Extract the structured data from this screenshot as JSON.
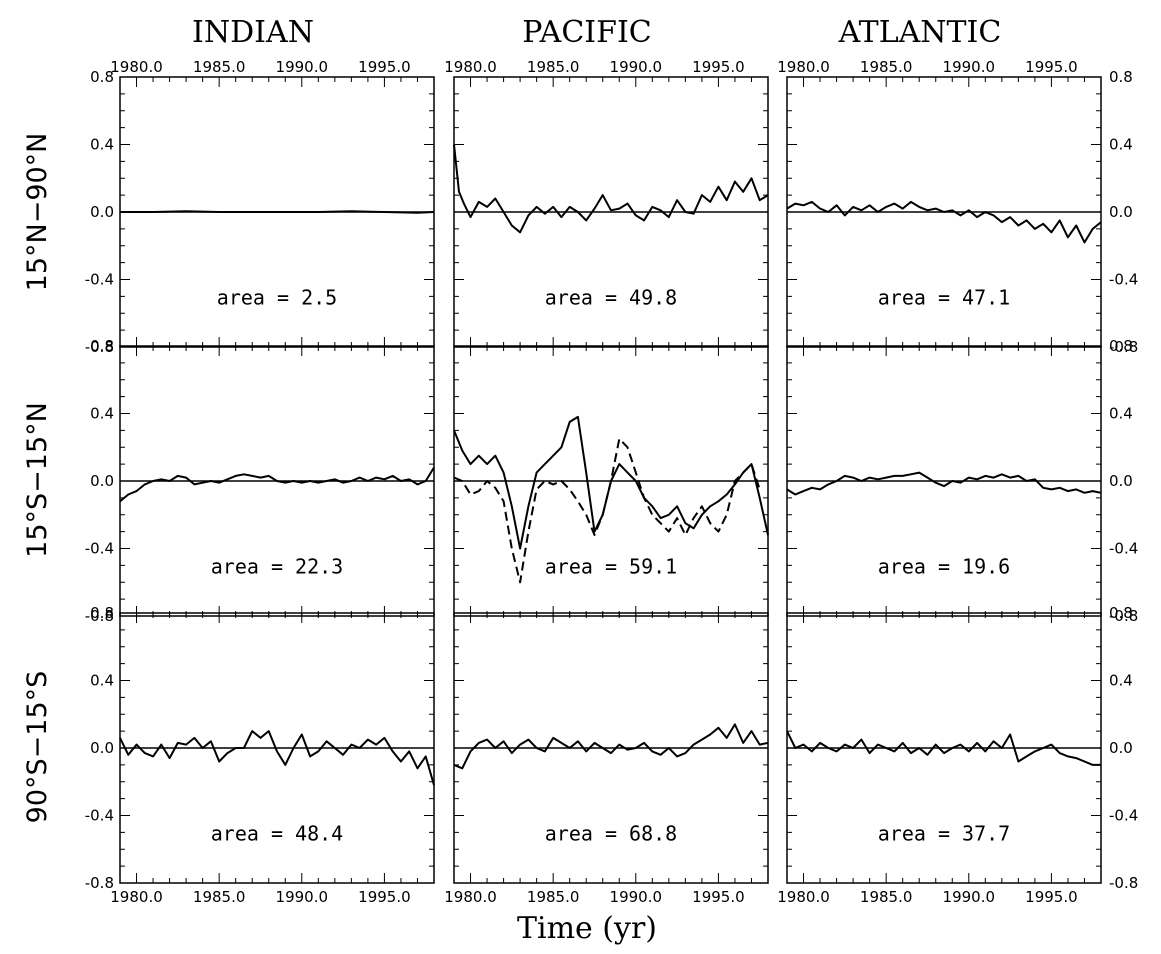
{
  "chart_data": {
    "type": "line",
    "columns": [
      "INDIAN",
      "PACIFIC",
      "ATLANTIC"
    ],
    "rows": [
      "15°N−90°N",
      "15°S−15°N",
      "90°S−15°S"
    ],
    "xlabel": "Time (yr)",
    "xlim": [
      1979.0,
      1998.0
    ],
    "ylim": [
      -0.8,
      0.8
    ],
    "x_ticks": [
      1980.0,
      1985.0,
      1990.0,
      1995.0
    ],
    "x_tick_labels": [
      "1980.0",
      "1985.0",
      "1990.0",
      "1995.0"
    ],
    "y_ticks": [
      -0.8,
      -0.4,
      0.0,
      0.4,
      0.8
    ],
    "y_tick_labels": [
      "-0.8",
      "-0.4",
      "0.0",
      "0.4",
      "0.8"
    ],
    "reference_line": 0.0,
    "panels": [
      {
        "basin": "INDIAN",
        "region": "15°N−90°N",
        "area_label": "area = 2.5",
        "series": [
          {
            "style": "solid",
            "x": [
              1979.0,
              1981.0,
              1983.0,
              1985.0,
              1987.0,
              1989.0,
              1991.0,
              1993.0,
              1995.0,
              1997.0,
              1998.0
            ],
            "values": [
              0.0,
              0.0,
              0.005,
              0.0,
              0.0,
              0.0,
              0.0,
              0.005,
              0.0,
              -0.005,
              0.0
            ]
          }
        ]
      },
      {
        "basin": "PACIFIC",
        "region": "15°N−90°N",
        "area_label": "area = 49.8",
        "series": [
          {
            "style": "solid",
            "x": [
              1979.0,
              1979.3,
              1979.6,
              1980.0,
              1980.5,
              1981.0,
              1981.5,
              1982.0,
              1982.5,
              1983.0,
              1983.5,
              1984.0,
              1984.5,
              1985.0,
              1985.5,
              1986.0,
              1986.5,
              1987.0,
              1987.5,
              1988.0,
              1988.5,
              1989.0,
              1989.5,
              1990.0,
              1990.5,
              1991.0,
              1991.5,
              1992.0,
              1992.5,
              1993.0,
              1993.5,
              1994.0,
              1994.5,
              1995.0,
              1995.5,
              1996.0,
              1996.5,
              1997.0,
              1997.5,
              1998.0
            ],
            "values": [
              0.4,
              0.12,
              0.05,
              -0.03,
              0.06,
              0.03,
              0.08,
              0.0,
              -0.08,
              -0.12,
              -0.02,
              0.03,
              -0.01,
              0.03,
              -0.03,
              0.03,
              0.0,
              -0.05,
              0.02,
              0.1,
              0.01,
              0.02,
              0.05,
              -0.02,
              -0.05,
              0.03,
              0.01,
              -0.03,
              0.07,
              0.0,
              -0.01,
              0.1,
              0.06,
              0.15,
              0.07,
              0.18,
              0.12,
              0.2,
              0.07,
              0.1
            ]
          }
        ]
      },
      {
        "basin": "ATLANTIC",
        "region": "15°N−90°N",
        "area_label": "area = 47.1",
        "series": [
          {
            "style": "solid",
            "x": [
              1979.0,
              1979.5,
              1980.0,
              1980.5,
              1981.0,
              1981.5,
              1982.0,
              1982.5,
              1983.0,
              1983.5,
              1984.0,
              1984.5,
              1985.0,
              1985.5,
              1986.0,
              1986.5,
              1987.0,
              1987.5,
              1988.0,
              1988.5,
              1989.0,
              1989.5,
              1990.0,
              1990.5,
              1991.0,
              1991.5,
              1992.0,
              1992.5,
              1993.0,
              1993.5,
              1994.0,
              1994.5,
              1995.0,
              1995.5,
              1996.0,
              1996.5,
              1997.0,
              1997.5,
              1998.0
            ],
            "values": [
              0.02,
              0.05,
              0.04,
              0.06,
              0.02,
              0.0,
              0.04,
              -0.02,
              0.03,
              0.01,
              0.04,
              0.0,
              0.03,
              0.05,
              0.02,
              0.06,
              0.03,
              0.01,
              0.02,
              0.0,
              0.01,
              -0.02,
              0.01,
              -0.03,
              0.0,
              -0.02,
              -0.06,
              -0.03,
              -0.08,
              -0.05,
              -0.1,
              -0.07,
              -0.12,
              -0.05,
              -0.15,
              -0.08,
              -0.18,
              -0.1,
              -0.06
            ]
          }
        ]
      },
      {
        "basin": "INDIAN",
        "region": "15°S−15°N",
        "area_label": "area = 22.3",
        "series": [
          {
            "style": "solid",
            "x": [
              1979.0,
              1979.5,
              1980.0,
              1980.5,
              1981.0,
              1981.5,
              1982.0,
              1982.5,
              1983.0,
              1983.5,
              1984.0,
              1984.5,
              1985.0,
              1985.5,
              1986.0,
              1986.5,
              1987.0,
              1987.5,
              1988.0,
              1988.5,
              1989.0,
              1989.5,
              1990.0,
              1990.5,
              1991.0,
              1991.5,
              1992.0,
              1992.5,
              1993.0,
              1993.5,
              1994.0,
              1994.5,
              1995.0,
              1995.5,
              1996.0,
              1996.5,
              1997.0,
              1997.5,
              1998.0
            ],
            "values": [
              -0.12,
              -0.08,
              -0.06,
              -0.02,
              0.0,
              0.01,
              0.0,
              0.03,
              0.02,
              -0.02,
              -0.01,
              0.0,
              -0.01,
              0.01,
              0.03,
              0.04,
              0.03,
              0.02,
              0.03,
              0.0,
              -0.01,
              0.0,
              -0.01,
              0.0,
              -0.01,
              0.0,
              0.01,
              -0.01,
              0.0,
              0.02,
              0.0,
              0.02,
              0.01,
              0.03,
              0.0,
              0.01,
              -0.02,
              0.0,
              0.08
            ]
          }
        ]
      },
      {
        "basin": "PACIFIC",
        "region": "15°S−15°N",
        "area_label": "area = 59.1",
        "series": [
          {
            "style": "solid",
            "x": [
              1979.0,
              1979.5,
              1980.0,
              1980.5,
              1981.0,
              1981.5,
              1982.0,
              1982.5,
              1983.0,
              1983.5,
              1984.0,
              1984.5,
              1985.0,
              1985.5,
              1986.0,
              1986.5,
              1987.0,
              1987.5,
              1988.0,
              1988.5,
              1989.0,
              1989.5,
              1990.0,
              1990.5,
              1991.0,
              1991.5,
              1992.0,
              1992.5,
              1993.0,
              1993.5,
              1994.0,
              1994.5,
              1995.0,
              1995.5,
              1996.0,
              1996.5,
              1997.0,
              1997.5,
              1998.0
            ],
            "values": [
              0.3,
              0.18,
              0.1,
              0.15,
              0.1,
              0.15,
              0.05,
              -0.15,
              -0.4,
              -0.15,
              0.05,
              0.1,
              0.15,
              0.2,
              0.35,
              0.38,
              0.05,
              -0.3,
              -0.2,
              0.0,
              0.1,
              0.05,
              0.0,
              -0.1,
              -0.15,
              -0.22,
              -0.2,
              -0.15,
              -0.25,
              -0.28,
              -0.2,
              -0.15,
              -0.12,
              -0.08,
              -0.02,
              0.05,
              0.1,
              -0.1,
              -0.32
            ]
          },
          {
            "style": "dashed",
            "x": [
              1979.0,
              1979.5,
              1980.0,
              1980.5,
              1981.0,
              1981.5,
              1982.0,
              1982.5,
              1983.0,
              1983.5,
              1984.0,
              1984.5,
              1985.0,
              1985.5,
              1986.0,
              1986.5,
              1987.0,
              1987.5,
              1988.0,
              1988.5,
              1989.0,
              1989.5,
              1990.0,
              1990.5,
              1991.0,
              1991.5,
              1992.0,
              1992.5,
              1993.0,
              1993.5,
              1994.0,
              1994.5,
              1995.0,
              1995.5,
              1996.0,
              1996.5,
              1997.0,
              1997.5
            ],
            "values": [
              0.02,
              0.0,
              -0.08,
              -0.06,
              0.0,
              -0.04,
              -0.12,
              -0.4,
              -0.6,
              -0.3,
              -0.05,
              0.0,
              -0.02,
              0.0,
              -0.05,
              -0.12,
              -0.2,
              -0.32,
              -0.2,
              0.0,
              0.25,
              0.2,
              0.05,
              -0.1,
              -0.2,
              -0.25,
              -0.3,
              -0.22,
              -0.32,
              -0.22,
              -0.15,
              -0.25,
              -0.3,
              -0.2,
              0.0,
              0.05,
              0.1,
              -0.05
            ]
          }
        ]
      },
      {
        "basin": "ATLANTIC",
        "region": "15°S−15°N",
        "area_label": "area = 19.6",
        "series": [
          {
            "style": "solid",
            "x": [
              1979.0,
              1979.5,
              1980.0,
              1980.5,
              1981.0,
              1981.5,
              1982.0,
              1982.5,
              1983.0,
              1983.5,
              1984.0,
              1984.5,
              1985.0,
              1985.5,
              1986.0,
              1986.5,
              1987.0,
              1987.5,
              1988.0,
              1988.5,
              1989.0,
              1989.5,
              1990.0,
              1990.5,
              1991.0,
              1991.5,
              1992.0,
              1992.5,
              1993.0,
              1993.5,
              1994.0,
              1994.5,
              1995.0,
              1995.5,
              1996.0,
              1996.5,
              1997.0,
              1997.5,
              1998.0
            ],
            "values": [
              -0.05,
              -0.08,
              -0.06,
              -0.04,
              -0.05,
              -0.02,
              0.0,
              0.03,
              0.02,
              0.0,
              0.02,
              0.01,
              0.02,
              0.03,
              0.03,
              0.04,
              0.05,
              0.02,
              -0.01,
              -0.03,
              0.0,
              -0.01,
              0.02,
              0.01,
              0.03,
              0.02,
              0.04,
              0.02,
              0.03,
              0.0,
              0.01,
              -0.04,
              -0.05,
              -0.04,
              -0.06,
              -0.05,
              -0.07,
              -0.06,
              -0.07
            ]
          }
        ]
      },
      {
        "basin": "INDIAN",
        "region": "90°S−15°S",
        "area_label": "area = 48.4",
        "series": [
          {
            "style": "solid",
            "x": [
              1979.0,
              1979.5,
              1980.0,
              1980.5,
              1981.0,
              1981.5,
              1982.0,
              1982.5,
              1983.0,
              1983.5,
              1984.0,
              1984.5,
              1985.0,
              1985.5,
              1986.0,
              1986.5,
              1987.0,
              1987.5,
              1988.0,
              1988.5,
              1989.0,
              1989.5,
              1990.0,
              1990.5,
              1991.0,
              1991.5,
              1992.0,
              1992.5,
              1993.0,
              1993.5,
              1994.0,
              1994.5,
              1995.0,
              1995.5,
              1996.0,
              1996.5,
              1997.0,
              1997.5,
              1998.0
            ],
            "values": [
              0.06,
              -0.04,
              0.02,
              -0.03,
              -0.05,
              0.02,
              -0.06,
              0.03,
              0.02,
              0.06,
              0.0,
              0.04,
              -0.08,
              -0.03,
              0.0,
              0.0,
              0.1,
              0.06,
              0.1,
              -0.02,
              -0.1,
              0.0,
              0.08,
              -0.05,
              -0.02,
              0.04,
              0.0,
              -0.04,
              0.02,
              0.0,
              0.05,
              0.02,
              0.06,
              -0.02,
              -0.08,
              -0.02,
              -0.12,
              -0.05,
              -0.22
            ]
          }
        ]
      },
      {
        "basin": "PACIFIC",
        "region": "90°S−15°S",
        "area_label": "area = 68.8",
        "series": [
          {
            "style": "solid",
            "x": [
              1979.0,
              1979.5,
              1980.0,
              1980.5,
              1981.0,
              1981.5,
              1982.0,
              1982.5,
              1983.0,
              1983.5,
              1984.0,
              1984.5,
              1985.0,
              1985.5,
              1986.0,
              1986.5,
              1987.0,
              1987.5,
              1988.0,
              1988.5,
              1989.0,
              1989.5,
              1990.0,
              1990.5,
              1991.0,
              1991.5,
              1992.0,
              1992.5,
              1993.0,
              1993.5,
              1994.0,
              1994.5,
              1995.0,
              1995.5,
              1996.0,
              1996.5,
              1997.0,
              1997.5,
              1998.0
            ],
            "values": [
              -0.1,
              -0.12,
              -0.02,
              0.03,
              0.05,
              0.0,
              0.04,
              -0.03,
              0.02,
              0.05,
              0.0,
              -0.02,
              0.06,
              0.03,
              0.0,
              0.04,
              -0.02,
              0.03,
              0.0,
              -0.03,
              0.02,
              -0.01,
              0.0,
              0.03,
              -0.02,
              -0.04,
              0.0,
              -0.05,
              -0.03,
              0.02,
              0.05,
              0.08,
              0.12,
              0.06,
              0.14,
              0.03,
              0.1,
              0.02,
              0.03
            ]
          }
        ]
      },
      {
        "basin": "ATLANTIC",
        "region": "90°S−15°S",
        "area_label": "area = 37.7",
        "series": [
          {
            "style": "solid",
            "x": [
              1979.0,
              1979.5,
              1980.0,
              1980.5,
              1981.0,
              1981.5,
              1982.0,
              1982.5,
              1983.0,
              1983.5,
              1984.0,
              1984.5,
              1985.0,
              1985.5,
              1986.0,
              1986.5,
              1987.0,
              1987.5,
              1988.0,
              1988.5,
              1989.0,
              1989.5,
              1990.0,
              1990.5,
              1991.0,
              1991.5,
              1992.0,
              1992.5,
              1993.0,
              1993.5,
              1994.0,
              1994.5,
              1995.0,
              1995.5,
              1996.0,
              1996.5,
              1997.0,
              1997.5,
              1998.0
            ],
            "values": [
              0.1,
              0.0,
              0.02,
              -0.02,
              0.03,
              0.0,
              -0.02,
              0.02,
              0.0,
              0.05,
              -0.03,
              0.02,
              0.0,
              -0.02,
              0.03,
              -0.03,
              0.0,
              -0.04,
              0.02,
              -0.03,
              0.0,
              0.02,
              -0.02,
              0.03,
              -0.02,
              0.04,
              0.0,
              0.08,
              -0.08,
              -0.05,
              -0.02,
              0.0,
              0.02,
              -0.03,
              -0.05,
              -0.06,
              -0.08,
              -0.1,
              -0.1
            ]
          }
        ]
      }
    ]
  }
}
